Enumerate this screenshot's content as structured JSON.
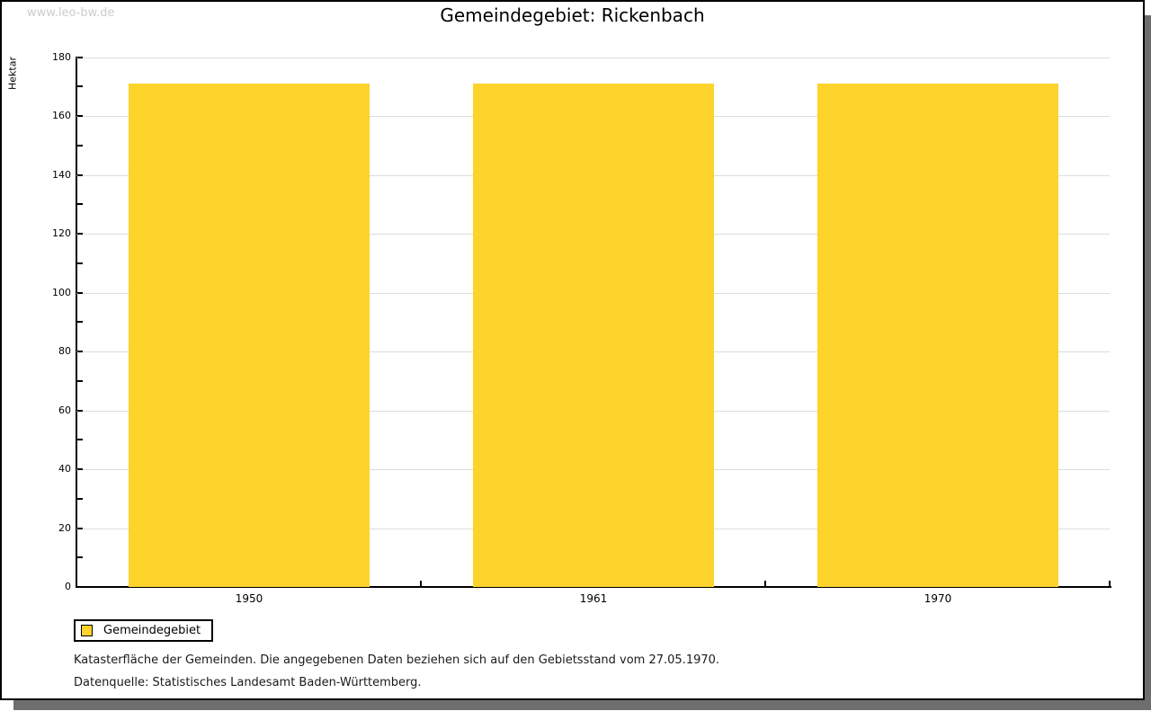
{
  "watermark": "www.leo-bw.de",
  "title": "Gemeindegebiet: Rickenbach",
  "chart_data": {
    "type": "bar",
    "title": "Gemeindegebiet: Rickenbach",
    "categories": [
      "1950",
      "1961",
      "1970"
    ],
    "series": [
      {
        "name": "Gemeindegebiet",
        "values": [
          171,
          171,
          171
        ]
      }
    ],
    "xlabel": "",
    "ylabel": "Hektar",
    "ylim": [
      0,
      180
    ],
    "ytick_step": 20,
    "yminor_step": 10,
    "grid": true,
    "legend_position": "bottom-left",
    "bar_color": "#fdd32c",
    "grid_color": "#dddddd"
  },
  "legend": {
    "label": "Gemeindegebiet",
    "swatch_color": "#fdd32c"
  },
  "footnotes": [
    "Katasterfläche der Gemeinden. Die angegebenen Daten beziehen sich auf den Gebietsstand vom 27.05.1970.",
    "Datenquelle: Statistisches Landesamt Baden-Württemberg."
  ]
}
